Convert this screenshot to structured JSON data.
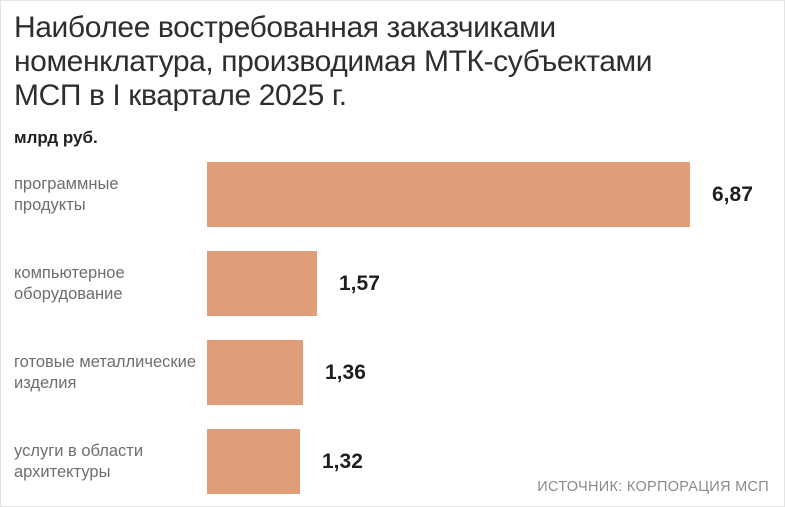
{
  "page": {
    "title_lines": [
      "Наиболее востребованная заказчиками",
      "номенклатура, производимая МТК-субъектами",
      "МСП в I квартале 2025 г."
    ],
    "unit_label": "млрд руб.",
    "source": "ИСТОЧНИК: КОРПОРАЦИЯ МСП"
  },
  "colors": {
    "bar": "#DF9D79",
    "title_text": "#2e2e2e",
    "category_text": "#6e6e6e",
    "value_text": "#1f1f1f",
    "source_text": "#8a8a8a"
  },
  "chart_data": {
    "type": "bar",
    "orientation": "horizontal",
    "title": "Наиболее востребованная заказчиками номенклатура, производимая МТК-субъектами МСП в I квартале 2025 г.",
    "unit": "млрд руб.",
    "categories": [
      "программные продукты",
      "компьютерное оборудование",
      "готовые металлические изделия",
      "услуги в области архитектуры"
    ],
    "category_lines": [
      [
        "программные",
        "продукты"
      ],
      [
        "компьютерное",
        "оборудование"
      ],
      [
        "готовые металлические",
        "изделия"
      ],
      [
        "услуги в области",
        "архитектуры"
      ]
    ],
    "values": [
      6.87,
      1.57,
      1.36,
      1.32
    ],
    "value_labels": [
      "6,87",
      "1,57",
      "1,36",
      "1,32"
    ],
    "xlim": [
      0,
      6.87
    ],
    "grid": false,
    "legend": "none",
    "source": "ИСТОЧНИК: КОРПОРАЦИЯ МСП"
  }
}
